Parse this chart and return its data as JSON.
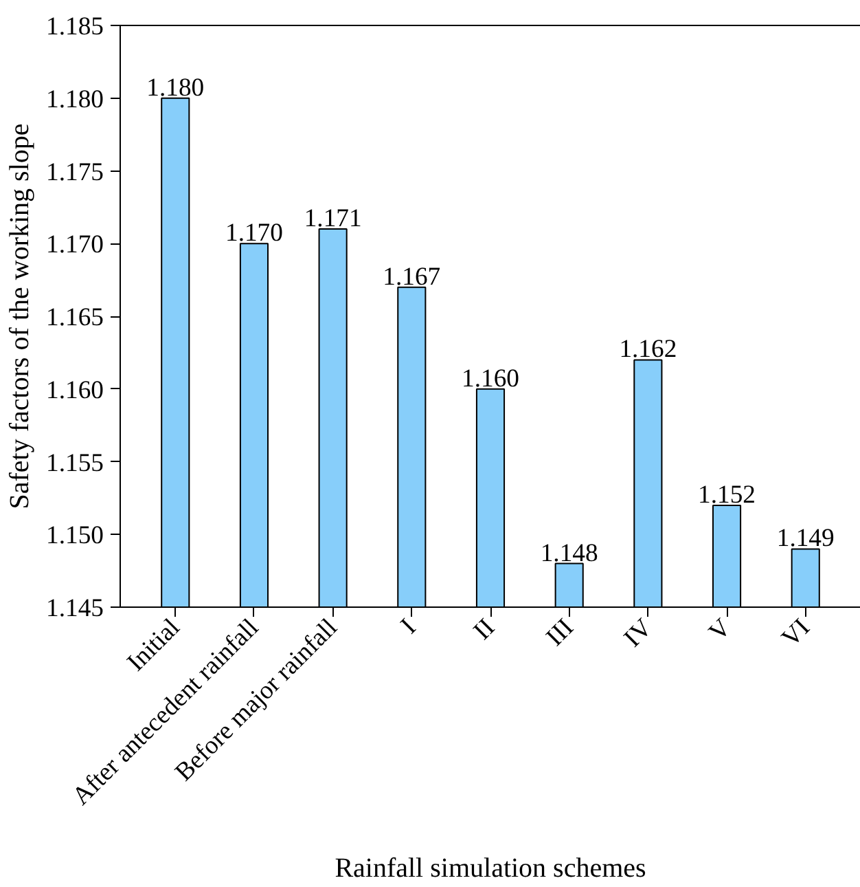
{
  "chart_data": {
    "type": "bar",
    "xlabel": "Rainfall simulation schemes",
    "ylabel": "Safety factors of the working slope",
    "categories": [
      "Initial",
      "After antecedent rainfall",
      "Before major rainfall",
      "I",
      "II",
      "III",
      "IV",
      "V",
      "VI"
    ],
    "values": [
      1.18,
      1.17,
      1.171,
      1.167,
      1.16,
      1.148,
      1.162,
      1.152,
      1.149
    ],
    "value_labels": [
      "1.180",
      "1.170",
      "1.171",
      "1.167",
      "1.160",
      "1.148",
      "1.162",
      "1.152",
      "1.149"
    ],
    "color": "#87cefa",
    "ylim": [
      1.145,
      1.185
    ],
    "yticks": [
      {
        "value": 1.145,
        "label": "1.145"
      },
      {
        "value": 1.15,
        "label": "1.150"
      },
      {
        "value": 1.155,
        "label": "1.155"
      },
      {
        "value": 1.16,
        "label": "1.160"
      },
      {
        "value": 1.165,
        "label": "1.165"
      },
      {
        "value": 1.17,
        "label": "1.170"
      },
      {
        "value": 1.175,
        "label": "1.175"
      },
      {
        "value": 1.18,
        "label": "1.180"
      },
      {
        "value": 1.185,
        "label": "1.185"
      }
    ],
    "grid": false
  }
}
